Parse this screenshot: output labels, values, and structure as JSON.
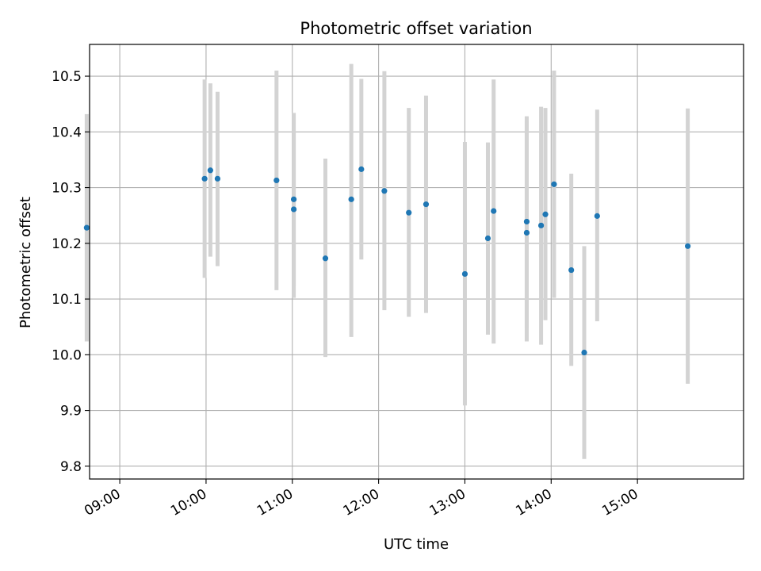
{
  "chart_data": {
    "type": "scatter",
    "title": "Photometric offset variation",
    "xlabel": "UTC time",
    "ylabel": "Photometric offset",
    "x_tick_labels": [
      "09:00",
      "10:00",
      "11:00",
      "12:00",
      "13:00",
      "14:00",
      "15:00"
    ],
    "x_ticks_hours": [
      9,
      10,
      11,
      12,
      13,
      14,
      15
    ],
    "y_ticks": [
      9.8,
      9.9,
      10.0,
      10.1,
      10.2,
      10.3,
      10.4,
      10.5
    ],
    "y_tick_labels": [
      "9.8",
      "9.9",
      "10.0",
      "10.1",
      "10.2",
      "10.3",
      "10.4",
      "10.5"
    ],
    "xlim_hours": [
      8.65,
      16.23
    ],
    "ylim": [
      9.777,
      10.557
    ],
    "grid": true,
    "colors": {
      "marker": "#1f77b4",
      "errorbar": "#d3d3d3",
      "grid": "#b0b0b0"
    },
    "x_hours": [
      8.6167,
      9.9833,
      10.05,
      10.1333,
      10.8167,
      11.0167,
      11.0167,
      11.3833,
      11.6833,
      11.8,
      12.0667,
      12.35,
      12.55,
      13.0,
      13.2667,
      13.3333,
      13.7167,
      13.7167,
      13.8833,
      13.9333,
      14.0333,
      14.2333,
      14.3833,
      14.5333,
      15.5833
    ],
    "y": [
      10.228,
      10.316,
      10.331,
      10.316,
      10.313,
      10.279,
      10.261,
      10.173,
      10.279,
      10.333,
      10.294,
      10.255,
      10.27,
      10.145,
      10.209,
      10.258,
      10.239,
      10.219,
      10.232,
      10.252,
      10.306,
      10.152,
      10.004,
      10.249,
      10.195
    ],
    "yerr_low": [
      10.024,
      10.138,
      10.176,
      10.159,
      10.116,
      10.102,
      10.124,
      9.996,
      10.032,
      10.171,
      10.08,
      10.068,
      10.075,
      9.909,
      10.036,
      10.02,
      10.024,
      10.048,
      10.018,
      10.062,
      10.102,
      9.98,
      9.813,
      10.06,
      9.948
    ],
    "yerr_high": [
      10.432,
      10.494,
      10.487,
      10.472,
      10.51,
      10.434,
      10.4,
      10.352,
      10.522,
      10.495,
      10.509,
      10.443,
      10.465,
      10.382,
      10.381,
      10.494,
      10.428,
      10.42,
      10.445,
      10.443,
      10.51,
      10.325,
      10.195,
      10.44,
      10.442
    ]
  }
}
